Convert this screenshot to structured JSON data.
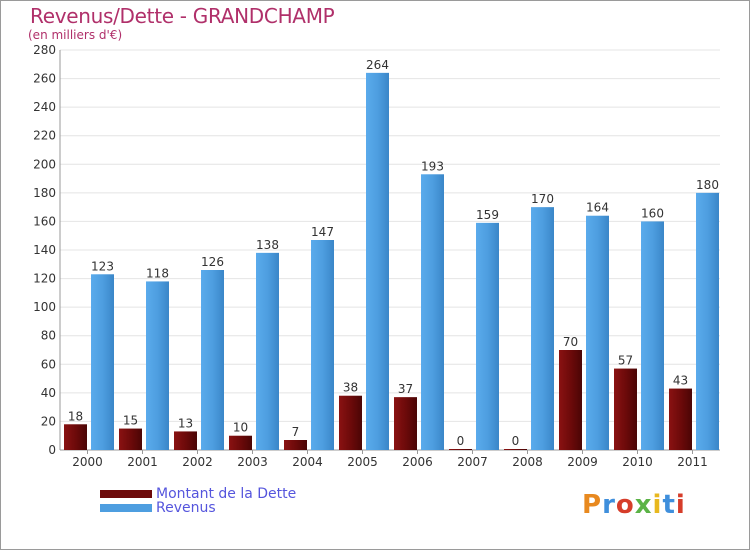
{
  "title": "Revenus/Dette - GRANDCHAMP",
  "subtitle": "(en milliers d'€)",
  "logo": {
    "text": "Proxiti",
    "colors": [
      "#e8891f",
      "#3f8fdc",
      "#d63d2a",
      "#5bb346",
      "#e8b81f",
      "#3f8fdc",
      "#d63d2a"
    ]
  },
  "colors": {
    "debt": "#6d0a0a",
    "revenue": "#4e9ee0",
    "axis_text": "#333333",
    "grid": "#e4e4e4"
  },
  "chart_data": {
    "type": "bar",
    "title": "Revenus/Dette - GRANDCHAMP",
    "subtitle": "(en milliers d'€)",
    "xlabel": "",
    "ylabel": "",
    "ylim": [
      0,
      280
    ],
    "yticks": [
      0,
      20,
      40,
      60,
      80,
      100,
      120,
      140,
      160,
      180,
      200,
      220,
      240,
      260,
      280
    ],
    "grid": true,
    "legend_position": "bottom-left",
    "categories": [
      "2000",
      "2001",
      "2002",
      "2003",
      "2004",
      "2005",
      "2006",
      "2007",
      "2008",
      "2009",
      "2010",
      "2011"
    ],
    "series": [
      {
        "name": "Montant de la Dette",
        "values": [
          18,
          15,
          13,
          10,
          7,
          38,
          37,
          0,
          0,
          70,
          57,
          43
        ]
      },
      {
        "name": "Revenus",
        "values": [
          123,
          118,
          126,
          138,
          147,
          264,
          193,
          159,
          170,
          164,
          160,
          180
        ]
      }
    ]
  }
}
